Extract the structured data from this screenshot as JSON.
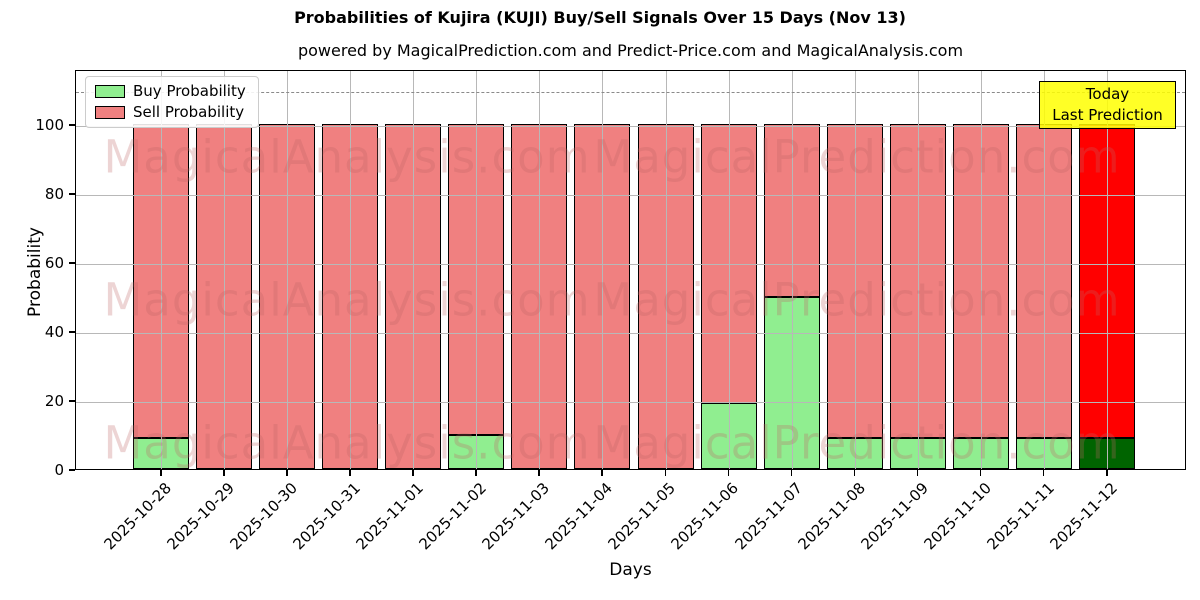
{
  "title": "Probabilities of Kujira (KUJI) Buy/Sell Signals Over 15 Days (Nov 13)",
  "subtitle": "powered by MagicalPrediction.com and Predict-Price.com and MagicalAnalysis.com",
  "legend": {
    "buy_label": "Buy Probability",
    "sell_label": "Sell Probability"
  },
  "annotation": {
    "line1": "Today",
    "line2": "Last Prediction",
    "bg_color": "#FFFF00"
  },
  "watermarks": [
    "MagicalAnalysis.com",
    "MagicalPrediction.com"
  ],
  "colors": {
    "buy": "#90EE90",
    "sell": "#F08080",
    "today_buy": "#006400",
    "today_sell": "#FF0000",
    "grid": "#b8b8b8",
    "annotation_bg": "#FFFF00"
  },
  "chart_data": {
    "type": "bar",
    "stacked": true,
    "title": "Probabilities of Kujira (KUJI) Buy/Sell Signals Over 15 Days (Nov 13)",
    "xlabel": "Days",
    "ylabel": "Probability",
    "categories": [
      "2025-10-28",
      "2025-10-29",
      "2025-10-30",
      "2025-10-31",
      "2025-11-01",
      "2025-11-02",
      "2025-11-03",
      "2025-11-04",
      "2025-11-05",
      "2025-11-06",
      "2025-11-07",
      "2025-11-08",
      "2025-11-09",
      "2025-11-10",
      "2025-11-11",
      "2025-11-12"
    ],
    "series": [
      {
        "name": "Buy Probability",
        "color": "#90EE90",
        "values": [
          9,
          0,
          0,
          0,
          0,
          10,
          0,
          0,
          0,
          19,
          50,
          9,
          9,
          9,
          9,
          9
        ]
      },
      {
        "name": "Sell Probability",
        "color": "#F08080",
        "values": [
          91,
          100,
          100,
          100,
          100,
          90,
          100,
          100,
          100,
          81,
          50,
          91,
          91,
          91,
          91,
          91
        ]
      }
    ],
    "today_index": 15,
    "today_colors": {
      "buy": "#006400",
      "sell": "#FF0000"
    },
    "ylim": [
      0,
      116
    ],
    "yticks": [
      0,
      20,
      40,
      60,
      80,
      100
    ],
    "dashed_line_y": 110,
    "grid": true,
    "legend_position": "upper left"
  }
}
